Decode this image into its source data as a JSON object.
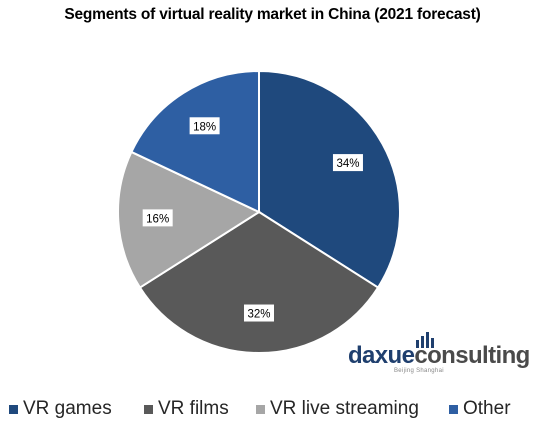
{
  "chart_data": {
    "type": "pie",
    "title": "Segments of virtual reality market in China (2021 forecast)",
    "slices": [
      {
        "name": "VR games",
        "value": 34,
        "label": "34%",
        "color": "#1f497d"
      },
      {
        "name": "VR films",
        "value": 32,
        "label": "32%",
        "color": "#595959"
      },
      {
        "name": "VR live streaming",
        "value": 16,
        "label": "16%",
        "color": "#a6a6a6"
      },
      {
        "name": "Other",
        "value": 18,
        "label": "18%",
        "color": "#2e5fa3"
      }
    ],
    "legend_position": "bottom"
  },
  "logo": {
    "brand_part1": "daxue",
    "brand_part2": "consulting",
    "tagline": "Beijing Shanghai"
  }
}
